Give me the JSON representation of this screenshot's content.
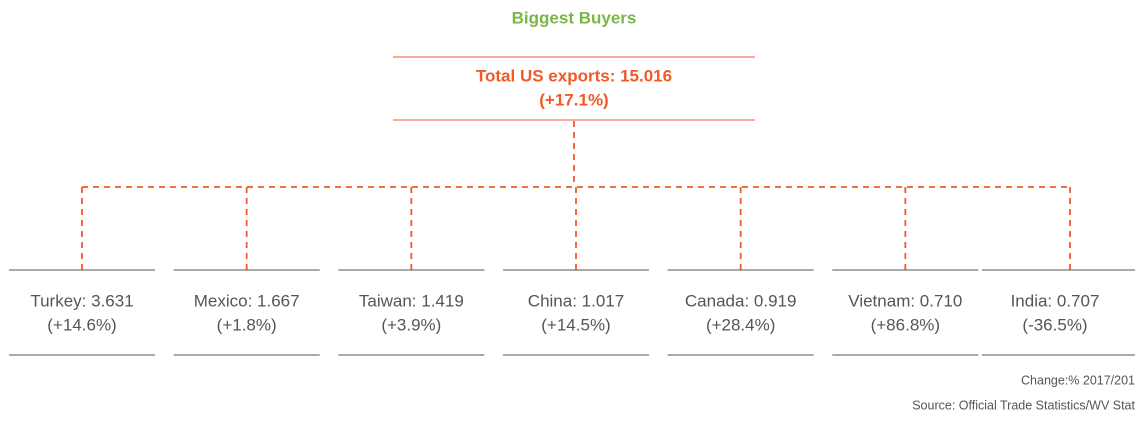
{
  "title": "Biggest Buyers",
  "root": {
    "lines": [
      "Total US exports: 15.016",
      "(+17.1%)"
    ]
  },
  "nodes": [
    {
      "lines": [
        "Turkey: 3.631",
        "(+14.6%)"
      ]
    },
    {
      "lines": [
        "Mexico: 1.667",
        "(+1.8%)"
      ]
    },
    {
      "lines": [
        "Taiwan: 1.419",
        "(+3.9%)"
      ]
    },
    {
      "lines": [
        "China: 1.017",
        "(+14.5%)"
      ]
    },
    {
      "lines": [
        "Canada: 0.919",
        "(+28.4%)"
      ]
    },
    {
      "lines": [
        "Vietnam: 0.710",
        "(+86.8%)"
      ]
    },
    {
      "lines": [
        "India: 0.707",
        "(-36.5%)"
      ]
    }
  ],
  "footnotes": [
    "Change:% 2017/201",
    "Source: Official Trade Statistics/WV Stat"
  ]
}
